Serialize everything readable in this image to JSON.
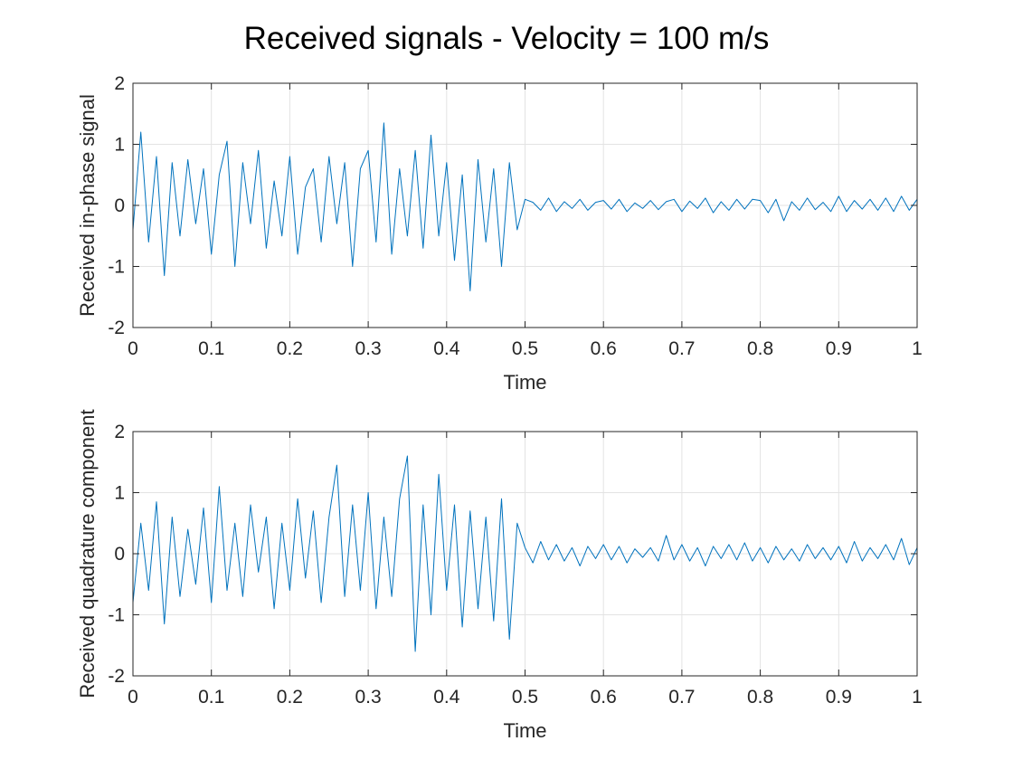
{
  "title": "Received signals - Velocity = 100 m/s",
  "chart_data": [
    {
      "type": "line",
      "xlabel": "Time",
      "ylabel": "Received in-phase signal",
      "xlim": [
        0,
        1
      ],
      "ylim": [
        -2,
        2
      ],
      "xticks": [
        0,
        0.1,
        0.2,
        0.3,
        0.4,
        0.5,
        0.6,
        0.7,
        0.8,
        0.9,
        1
      ],
      "xtick_labels": [
        "0",
        "0.1",
        "0.2",
        "0.3",
        "0.4",
        "0.5",
        "0.6",
        "0.7",
        "0.8",
        "0.9",
        "1"
      ],
      "yticks": [
        -2,
        -1,
        0,
        1,
        2
      ],
      "ytick_labels": [
        "-2",
        "-1",
        "0",
        "1",
        "2"
      ],
      "grid": true,
      "series": [
        {
          "color": "#0072bd",
          "x": [
            0,
            0.01,
            0.02,
            0.03,
            0.04,
            0.05,
            0.06,
            0.07,
            0.08,
            0.09,
            0.1,
            0.11,
            0.12,
            0.13,
            0.14,
            0.15,
            0.16,
            0.17,
            0.18,
            0.19,
            0.2,
            0.21,
            0.22,
            0.23,
            0.24,
            0.25,
            0.26,
            0.27,
            0.28,
            0.29,
            0.3,
            0.31,
            0.32,
            0.33,
            0.34,
            0.35,
            0.36,
            0.37,
            0.38,
            0.39,
            0.4,
            0.41,
            0.42,
            0.43,
            0.44,
            0.45,
            0.46,
            0.47,
            0.48,
            0.49,
            0.5,
            0.51,
            0.52,
            0.53,
            0.54,
            0.55,
            0.56,
            0.57,
            0.58,
            0.59,
            0.6,
            0.61,
            0.62,
            0.63,
            0.64,
            0.65,
            0.66,
            0.67,
            0.68,
            0.69,
            0.7,
            0.71,
            0.72,
            0.73,
            0.74,
            0.75,
            0.76,
            0.77,
            0.78,
            0.79,
            0.8,
            0.81,
            0.82,
            0.83,
            0.84,
            0.85,
            0.86,
            0.87,
            0.88,
            0.89,
            0.9,
            0.91,
            0.92,
            0.93,
            0.94,
            0.95,
            0.96,
            0.97,
            0.98,
            0.99,
            1
          ],
          "y": [
            -0.4,
            1.2,
            -0.6,
            0.8,
            -1.15,
            0.7,
            -0.5,
            0.75,
            -0.3,
            0.6,
            -0.8,
            0.5,
            1.05,
            -1.0,
            0.7,
            -0.3,
            0.9,
            -0.7,
            0.4,
            -0.5,
            0.8,
            -0.8,
            0.3,
            0.6,
            -0.6,
            0.8,
            -0.3,
            0.7,
            -1.0,
            0.6,
            0.9,
            -0.6,
            1.35,
            -0.8,
            0.6,
            -0.5,
            0.9,
            -0.7,
            1.15,
            -0.5,
            0.7,
            -0.9,
            0.5,
            -1.4,
            0.75,
            -0.6,
            0.6,
            -1.0,
            0.7,
            -0.4,
            0.1,
            0.05,
            -0.08,
            0.12,
            -0.1,
            0.06,
            -0.05,
            0.1,
            -0.08,
            0.05,
            0.08,
            -0.06,
            0.1,
            -0.1,
            0.04,
            -0.05,
            0.08,
            -0.07,
            0.06,
            0.1,
            -0.1,
            0.07,
            -0.05,
            0.12,
            -0.12,
            0.06,
            -0.08,
            0.1,
            -0.06,
            0.1,
            0.08,
            -0.12,
            0.1,
            -0.25,
            0.06,
            -0.08,
            0.12,
            -0.07,
            0.05,
            -0.1,
            0.15,
            -0.1,
            0.08,
            -0.06,
            0.1,
            -0.08,
            0.12,
            -0.1,
            0.15,
            -0.08,
            0.1
          ]
        }
      ]
    },
    {
      "type": "line",
      "xlabel": "Time",
      "ylabel": "Received quadrature component",
      "xlim": [
        0,
        1
      ],
      "ylim": [
        -2,
        2
      ],
      "xticks": [
        0,
        0.1,
        0.2,
        0.3,
        0.4,
        0.5,
        0.6,
        0.7,
        0.8,
        0.9,
        1
      ],
      "xtick_labels": [
        "0",
        "0.1",
        "0.2",
        "0.3",
        "0.4",
        "0.5",
        "0.6",
        "0.7",
        "0.8",
        "0.9",
        "1"
      ],
      "yticks": [
        -2,
        -1,
        0,
        1,
        2
      ],
      "ytick_labels": [
        "-2",
        "-1",
        "0",
        "1",
        "2"
      ],
      "grid": true,
      "series": [
        {
          "color": "#0072bd",
          "x": [
            0,
            0.01,
            0.02,
            0.03,
            0.04,
            0.05,
            0.06,
            0.07,
            0.08,
            0.09,
            0.1,
            0.11,
            0.12,
            0.13,
            0.14,
            0.15,
            0.16,
            0.17,
            0.18,
            0.19,
            0.2,
            0.21,
            0.22,
            0.23,
            0.24,
            0.25,
            0.26,
            0.27,
            0.28,
            0.29,
            0.3,
            0.31,
            0.32,
            0.33,
            0.34,
            0.35,
            0.36,
            0.37,
            0.38,
            0.39,
            0.4,
            0.41,
            0.42,
            0.43,
            0.44,
            0.45,
            0.46,
            0.47,
            0.48,
            0.49,
            0.5,
            0.51,
            0.52,
            0.53,
            0.54,
            0.55,
            0.56,
            0.57,
            0.58,
            0.59,
            0.6,
            0.61,
            0.62,
            0.63,
            0.64,
            0.65,
            0.66,
            0.67,
            0.68,
            0.69,
            0.7,
            0.71,
            0.72,
            0.73,
            0.74,
            0.75,
            0.76,
            0.77,
            0.78,
            0.79,
            0.8,
            0.81,
            0.82,
            0.83,
            0.84,
            0.85,
            0.86,
            0.87,
            0.88,
            0.89,
            0.9,
            0.91,
            0.92,
            0.93,
            0.94,
            0.95,
            0.96,
            0.97,
            0.98,
            0.99,
            1
          ],
          "y": [
            -0.8,
            0.5,
            -0.6,
            0.85,
            -1.15,
            0.6,
            -0.7,
            0.4,
            -0.5,
            0.75,
            -0.8,
            1.1,
            -0.6,
            0.5,
            -0.7,
            0.8,
            -0.3,
            0.6,
            -0.9,
            0.5,
            -0.6,
            0.9,
            -0.4,
            0.7,
            -0.8,
            0.6,
            1.45,
            -0.7,
            0.8,
            -0.6,
            1.0,
            -0.9,
            0.6,
            -0.7,
            0.9,
            1.6,
            -1.6,
            0.8,
            -1.0,
            1.3,
            -0.6,
            0.8,
            -1.2,
            0.7,
            -0.9,
            0.6,
            -1.1,
            0.9,
            -1.4,
            0.5,
            0.1,
            -0.15,
            0.2,
            -0.1,
            0.15,
            -0.12,
            0.1,
            -0.2,
            0.12,
            -0.08,
            0.15,
            -0.1,
            0.12,
            -0.15,
            0.08,
            -0.06,
            0.1,
            -0.12,
            0.3,
            -0.1,
            0.15,
            -0.12,
            0.1,
            -0.2,
            0.12,
            -0.08,
            0.15,
            -0.1,
            0.18,
            -0.12,
            0.1,
            -0.15,
            0.12,
            -0.1,
            0.08,
            -0.12,
            0.15,
            -0.08,
            0.1,
            -0.1,
            0.12,
            -0.15,
            0.2,
            -0.12,
            0.1,
            -0.08,
            0.15,
            -0.1,
            0.25,
            -0.18,
            0.1
          ]
        }
      ]
    }
  ]
}
